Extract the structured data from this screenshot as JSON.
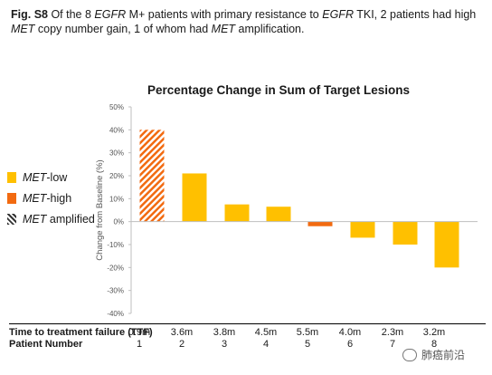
{
  "caption": {
    "fig_label": "Fig. S8",
    "segments": [
      {
        "t": " Of the 8 ",
        "i": false
      },
      {
        "t": "EGFR",
        "i": true
      },
      {
        "t": " M+ patients with primary resistance to ",
        "i": false
      },
      {
        "t": "EGFR",
        "i": true
      },
      {
        "t": " TKI, 2 patients had high ",
        "i": false
      },
      {
        "t": "MET",
        "i": true
      },
      {
        "t": " copy number gain, 1 of whom had ",
        "i": false
      },
      {
        "t": "MET",
        "i": true
      },
      {
        "t": " amplification.",
        "i": false
      }
    ]
  },
  "legend": {
    "low": {
      "name": "MET",
      "suffix": "-low"
    },
    "high": {
      "name": "MET",
      "suffix": "-high"
    },
    "amp": {
      "name": "MET",
      "suffix": " amplified"
    }
  },
  "colors": {
    "low": "#ffc000",
    "high": "#f26a10",
    "amplified_hatch": "#f26a10",
    "axis": "#bfbfbf",
    "text": "#1a1a1a"
  },
  "table": {
    "ttf_label": "Time to treatment failure (TTF)",
    "patient_label": "Patient Number",
    "ttf": [
      "0.9m",
      "3.6m",
      "3.8m",
      "4.5m",
      "5.5m",
      "4.0m",
      "2.3m",
      "3.2m"
    ],
    "patients": [
      "1",
      "2",
      "3",
      "4",
      "5",
      "6",
      "7",
      "8"
    ]
  },
  "watermark": "肺癌前沿",
  "chart_data": {
    "type": "bar",
    "title": "Percentage Change in Sum of Target Lesions",
    "xlabel": "",
    "ylabel": "Change from Baseline (%)",
    "ylim": [
      -40,
      50
    ],
    "yticks": [
      50,
      40,
      30,
      20,
      10,
      0,
      -10,
      -20,
      -30,
      -40
    ],
    "ytick_labels": [
      "50%",
      "40%",
      "30%",
      "20%",
      "10%",
      "0%",
      "-10%",
      "-20%",
      "-30%",
      "-40%"
    ],
    "grid": false,
    "legend_position": "left",
    "categories": [
      "1",
      "2",
      "3",
      "4",
      "5",
      "6",
      "7",
      "8"
    ],
    "values": [
      40,
      21,
      7.5,
      6.5,
      -2,
      -7,
      -10,
      -20
    ],
    "groups": [
      "amplified",
      "low",
      "low",
      "low",
      "high",
      "low",
      "low",
      "low"
    ]
  }
}
